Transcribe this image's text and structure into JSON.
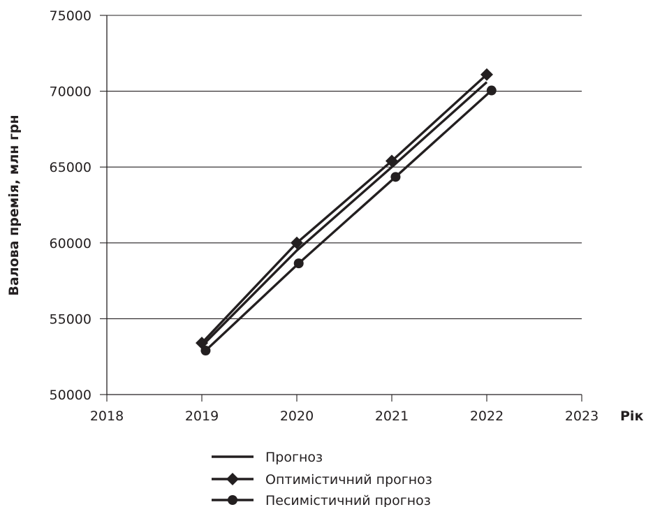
{
  "chart_data": {
    "type": "line",
    "title": "",
    "xlabel": "Рік",
    "ylabel": "Валова премія, млн грн",
    "xlim": [
      2018,
      2023
    ],
    "ylim": [
      50000,
      75000
    ],
    "x_ticks": [
      "2018",
      "2019",
      "2020",
      "2021",
      "2022",
      "2023"
    ],
    "y_ticks": [
      "50000",
      "55000",
      "60000",
      "65000",
      "70000",
      "75000"
    ],
    "grid": "horizontal",
    "legend_position": "bottom",
    "series": [
      {
        "name": "Прогноз",
        "marker": "none",
        "color": "#231f20",
        "x": [
          2019,
          2020,
          2021,
          2022
        ],
        "values": [
          53200,
          59500,
          65000,
          70600
        ]
      },
      {
        "name": "Оптимістичний прогноз",
        "marker": "diamond",
        "color": "#231f20",
        "x": [
          2019,
          2020,
          2021,
          2022
        ],
        "values": [
          53400,
          60000,
          65400,
          71100
        ]
      },
      {
        "name": "Песимістичний прогноз",
        "marker": "circle",
        "color": "#231f20",
        "x": [
          2019.04,
          2020.02,
          2021.04,
          2022.05
        ],
        "values": [
          52900,
          58650,
          64350,
          70050
        ]
      }
    ]
  }
}
